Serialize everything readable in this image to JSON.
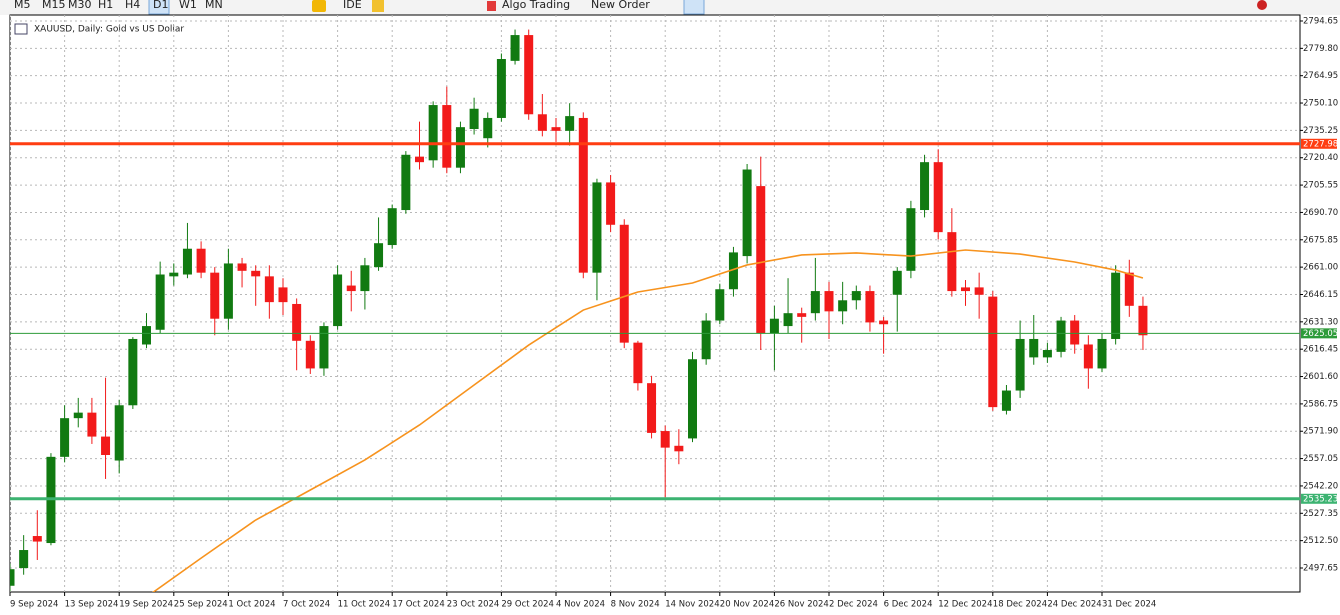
{
  "toolbar": {
    "timeframes": [
      "M5",
      "M15",
      "M30",
      "H1",
      "H4",
      "D1",
      "W1",
      "MN"
    ],
    "active": "D1",
    "items": [
      "IDE",
      "Algo Trading",
      "New Order"
    ]
  },
  "chart": {
    "type": "candlestick",
    "title": "XAUUSD, Daily: Gold vs US Dollar",
    "ylim": [
      2485.7,
      2797.9
    ],
    "yticks": [
      2794.65,
      {
        "value": 2779.8,
        "label": "2779.80"
      },
      2764.95,
      {
        "value": 2750.1,
        "label": "2750.10"
      },
      2735.25,
      {
        "value": 2720.4,
        "label": "2720.40"
      },
      2705.55,
      {
        "value": 2690.7,
        "label": "2690.70"
      },
      2675.85,
      {
        "value": 2661,
        "label": "2661.00"
      },
      2646.15,
      {
        "value": 2631.3,
        "label": "2631.30"
      },
      2616.45,
      {
        "value": 2601.6,
        "label": "2601.60"
      },
      2586.75,
      {
        "value": 2571.9,
        "label": "2571.90"
      },
      2557.05,
      {
        "value": 2542.2,
        "label": "2542.20"
      },
      2527.35,
      {
        "value": 2512.5,
        "label": "2512.50"
      },
      2497.65
    ],
    "x_labels": [
      "9 Sep 2024",
      "13 Sep 2024",
      "19 Sep 2024",
      "25 Sep 2024",
      "1 Oct 2024",
      "7 Oct 2024",
      "11 Oct 2024",
      "17 Oct 2024",
      "23 Oct 2024",
      "29 Oct 2024",
      "4 Nov 2024",
      "8 Nov 2024",
      "14 Nov 2024",
      "20 Nov 2024",
      "26 Nov 2024",
      "2 Dec 2024",
      "6 Dec 2024",
      "12 Dec 2024",
      "18 Dec 2024",
      "24 Dec 2024",
      "31 Dec 2024"
    ],
    "up_color": "#117a11",
    "down_color": "#f21a1a",
    "candles": [
      [
        2488,
        2500,
        2485,
        2497
      ],
      [
        2497.6,
        2515.5,
        2494,
        2507.4
      ],
      [
        2515,
        2529,
        2502,
        2512
      ],
      [
        2511.2,
        2560,
        2510,
        2558
      ],
      [
        2558,
        2586,
        2555,
        2579
      ],
      [
        2579,
        2590,
        2574,
        2582
      ],
      [
        2582,
        2590,
        2565,
        2569
      ],
      [
        2569,
        2601,
        2546,
        2559
      ],
      [
        2556,
        2589,
        2549,
        2586
      ],
      [
        2586,
        2623,
        2584,
        2622
      ],
      [
        2619,
        2636,
        2617,
        2629
      ],
      [
        2627,
        2664,
        2625,
        2657
      ],
      [
        2656,
        2663,
        2651,
        2658
      ],
      [
        2657,
        2685,
        2655,
        2671
      ],
      [
        2671,
        2675,
        2655,
        2658
      ],
      [
        2658,
        2661,
        2624,
        2633
      ],
      [
        2633,
        2671,
        2627,
        2663
      ],
      [
        2663,
        2666,
        2650,
        2659
      ],
      [
        2659,
        2662,
        2640,
        2656
      ],
      [
        2656,
        2662,
        2633,
        2642
      ],
      [
        2650,
        2655,
        2635,
        2642
      ],
      [
        2641,
        2644,
        2605,
        2621
      ],
      [
        2621,
        2624,
        2603,
        2606
      ],
      [
        2606,
        2631,
        2602,
        2629
      ],
      [
        2629,
        2662,
        2627,
        2657
      ],
      [
        2651,
        2659,
        2637,
        2648
      ],
      [
        2648,
        2666,
        2638,
        2662
      ],
      [
        2661,
        2688,
        2659,
        2674
      ],
      [
        2673,
        2695,
        2671,
        2693
      ],
      [
        2692,
        2724,
        2690,
        2722
      ],
      [
        2721,
        2740,
        2714,
        2718
      ],
      [
        2719,
        2751,
        2715,
        2749
      ],
      [
        2749,
        2759,
        2712,
        2715
      ],
      [
        2715,
        2740,
        2712,
        2737
      ],
      [
        2736,
        2753,
        2733,
        2747
      ],
      [
        2731,
        2745,
        2726,
        2742
      ],
      [
        2742,
        2777,
        2740,
        2774
      ],
      [
        2773,
        2790,
        2771,
        2787
      ],
      [
        2787,
        2790,
        2741,
        2744
      ],
      [
        2744,
        2755,
        2732,
        2735
      ],
      [
        2737,
        2742,
        2729,
        2735
      ],
      [
        2735,
        2750,
        2727,
        2743
      ],
      [
        2742,
        2745,
        2655,
        2658
      ],
      [
        2658,
        2709,
        2643,
        2707
      ],
      [
        2707,
        2711,
        2680,
        2684
      ],
      [
        2684,
        2687,
        2617,
        2620
      ],
      [
        2620,
        2621,
        2594,
        2598
      ],
      [
        2598,
        2602,
        2568,
        2571
      ],
      [
        2572,
        2575,
        2536,
        2563
      ],
      [
        2564,
        2573,
        2554,
        2561
      ],
      [
        2568,
        2615,
        2566,
        2611
      ],
      [
        2611,
        2636,
        2608,
        2632
      ],
      [
        2632,
        2652,
        2630,
        2649
      ],
      [
        2649,
        2672,
        2645,
        2669
      ],
      [
        2667,
        2717,
        2663,
        2714
      ],
      [
        2705,
        2721,
        2616,
        2625
      ],
      [
        2625,
        2640,
        2605,
        2633
      ],
      [
        2629,
        2655,
        2625,
        2636
      ],
      [
        2636,
        2639,
        2620,
        2634
      ],
      [
        2636,
        2666,
        2632,
        2648
      ],
      [
        2648,
        2653,
        2622,
        2637
      ],
      [
        2637,
        2653,
        2630,
        2643
      ],
      [
        2643,
        2651,
        2638,
        2648
      ],
      [
        2648,
        2651,
        2626,
        2631
      ],
      [
        2632,
        2634,
        2614,
        2630
      ],
      [
        2646,
        2661,
        2626,
        2659
      ],
      [
        2659,
        2697,
        2655,
        2693
      ],
      [
        2692,
        2722,
        2688,
        2718
      ],
      [
        2718,
        2725,
        2676,
        2680
      ],
      [
        2680,
        2693,
        2645,
        2648
      ],
      [
        2650,
        2654,
        2640,
        2648
      ],
      [
        2650,
        2658,
        2633,
        2646
      ],
      [
        2645,
        2648,
        2583,
        2585
      ],
      [
        2583,
        2597,
        2581,
        2594
      ],
      [
        2594,
        2632,
        2590,
        2622
      ],
      [
        2612,
        2635,
        2608,
        2622
      ],
      [
        2612,
        2620,
        2609,
        2616
      ],
      [
        2615,
        2634,
        2612,
        2632
      ],
      [
        2632,
        2635,
        2614,
        2619
      ],
      [
        2619,
        2624,
        2595,
        2606
      ],
      [
        2606,
        2625,
        2604,
        2622
      ],
      [
        2622,
        2662,
        2619,
        2658
      ],
      [
        2658,
        2665,
        2634,
        2640
      ],
      [
        2640,
        2645,
        2616,
        2624
      ]
    ],
    "ma": {
      "color": "#f7931e",
      "points": [
        [
          10,
          2481.9
        ],
        [
          14,
          2503
        ],
        [
          18,
          2523.7
        ],
        [
          22,
          2540
        ],
        [
          26,
          2556.3
        ],
        [
          30,
          2575.3
        ],
        [
          34,
          2597
        ],
        [
          38,
          2618.7
        ],
        [
          42,
          2637.7
        ],
        [
          46,
          2647.5
        ],
        [
          50,
          2652.4
        ],
        [
          54,
          2662.2
        ],
        [
          58,
          2667.6
        ],
        [
          62,
          2668.7
        ],
        [
          66,
          2667
        ],
        [
          70,
          2670.3
        ],
        [
          74,
          2668.1
        ],
        [
          78,
          2663.8
        ],
        [
          81,
          2659.4
        ],
        [
          83,
          2655.1
        ]
      ]
    },
    "levels": [
      {
        "value": 2727.98,
        "color": "#ff3d12"
      },
      {
        "value": 2535.23,
        "color": "#3cb371"
      }
    ],
    "current_price": {
      "value": 2625.05,
      "color": "#2e9b3a"
    }
  }
}
